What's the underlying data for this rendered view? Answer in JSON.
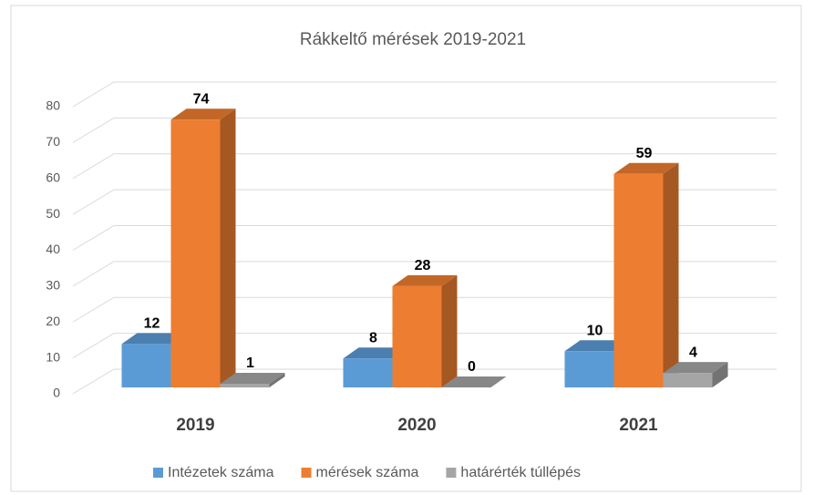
{
  "chart_data": {
    "type": "bar3d",
    "title": "Rákkeltő mérések 2019-2021",
    "categories": [
      "2019",
      "2020",
      "2021"
    ],
    "series": [
      {
        "name": "Intézetek száma",
        "color": "#5b9bd5",
        "values": [
          12,
          8,
          10
        ]
      },
      {
        "name": "mérések száma",
        "color": "#ed7d31",
        "values": [
          74,
          28,
          59
        ]
      },
      {
        "name": "határérték túllépés",
        "color": "#a5a5a5",
        "values": [
          1,
          0,
          4
        ]
      }
    ],
    "ylim": [
      0,
      80
    ],
    "yticks": [
      0,
      10,
      20,
      30,
      40,
      50,
      60,
      70,
      80
    ],
    "grid": true,
    "legend": "bottom"
  }
}
